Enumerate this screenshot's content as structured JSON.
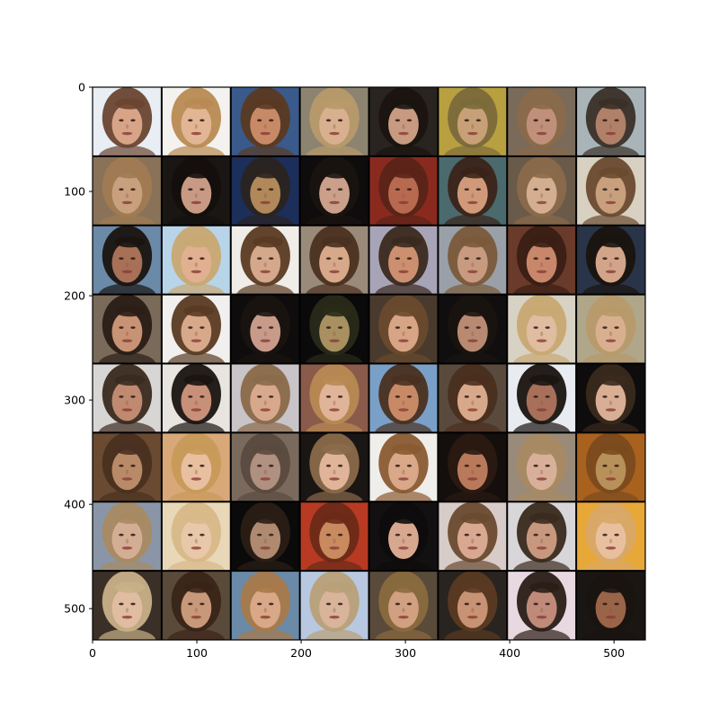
{
  "axes": {
    "x_range": [
      0,
      530
    ],
    "y_range": [
      0,
      530
    ],
    "y_inverted": true,
    "x_ticks": [
      {
        "value": 0,
        "label": "0"
      },
      {
        "value": 100,
        "label": "100"
      },
      {
        "value": 200,
        "label": "200"
      },
      {
        "value": 300,
        "label": "300"
      },
      {
        "value": 400,
        "label": "400"
      },
      {
        "value": 500,
        "label": "500"
      }
    ],
    "y_ticks": [
      {
        "value": 0,
        "label": "0"
      },
      {
        "value": 100,
        "label": "100"
      },
      {
        "value": 200,
        "label": "200"
      },
      {
        "value": 300,
        "label": "300"
      },
      {
        "value": 400,
        "label": "400"
      },
      {
        "value": 500,
        "label": "500"
      }
    ]
  },
  "image_grid": {
    "rows": 8,
    "cols": 8,
    "subject": "generated-face",
    "separator_color": "#000000",
    "tiles": [
      {
        "bg": "#e9eef4",
        "hair": "#6a4530",
        "skin": "#d8a488"
      },
      {
        "bg": "#f4f2ee",
        "hair": "#b88a52",
        "skin": "#e2b694"
      },
      {
        "bg": "#3a5a8c",
        "hair": "#5a3a22",
        "skin": "#c88a66"
      },
      {
        "bg": "#8c8470",
        "hair": "#b89a6a",
        "skin": "#d8b090"
      },
      {
        "bg": "#2a2420",
        "hair": "#1a1410",
        "skin": "#c89a80"
      },
      {
        "bg": "#b8a040",
        "hair": "#7a6a3a",
        "skin": "#c8a078"
      },
      {
        "bg": "#7a6a5a",
        "hair": "#8a6a4a",
        "skin": "#c0907a"
      },
      {
        "bg": "#a8b4b8",
        "hair": "#3a3028",
        "skin": "#b08068"
      },
      {
        "bg": "#8a7258",
        "hair": "#a07a52",
        "skin": "#c8a07e"
      },
      {
        "bg": "#1a1614",
        "hair": "#140f0c",
        "skin": "#c89a84"
      },
      {
        "bg": "#1c2e5a",
        "hair": "#2a2420",
        "skin": "#b0885a"
      },
      {
        "bg": "#0e0c0c",
        "hair": "#1a1410",
        "skin": "#caa08a"
      },
      {
        "bg": "#8a2a1e",
        "hair": "#5a2418",
        "skin": "#b86a50"
      },
      {
        "bg": "#4a6a6e",
        "hair": "#3a2418",
        "skin": "#d09a7a"
      },
      {
        "bg": "#6a5a4a",
        "hair": "#8a6a4a",
        "skin": "#d4ae90"
      },
      {
        "bg": "#d8d0c0",
        "hair": "#6a4a30",
        "skin": "#c8a07e"
      },
      {
        "bg": "#6a8aa8",
        "hair": "#1a1410",
        "skin": "#a87056"
      },
      {
        "bg": "#b8d4e8",
        "hair": "#c8a872",
        "skin": "#e0b090"
      },
      {
        "bg": "#f0ece8",
        "hair": "#5a3a22",
        "skin": "#d4a88a"
      },
      {
        "bg": "#9a8a7a",
        "hair": "#4a3020",
        "skin": "#d8a88a"
      },
      {
        "bg": "#a8a4b8",
        "hair": "#3a2a1e",
        "skin": "#cc9070"
      },
      {
        "bg": "#9aa0a8",
        "hair": "#7a5a3a",
        "skin": "#c89a80"
      },
      {
        "bg": "#6a3a2a",
        "hair": "#3a1e14",
        "skin": "#c8866a"
      },
      {
        "bg": "#2a3448",
        "hair": "#1a1410",
        "skin": "#d2a48a"
      },
      {
        "bg": "#7a6a5a",
        "hair": "#2a1e16",
        "skin": "#c89274"
      },
      {
        "bg": "#f2f0ee",
        "hair": "#5a3a22",
        "skin": "#d8a88a"
      },
      {
        "bg": "#0e0c0c",
        "hair": "#1a1410",
        "skin": "#c89a8a"
      },
      {
        "bg": "#0a0a0a",
        "hair": "#2a2a1a",
        "skin": "#a89060"
      },
      {
        "bg": "#4a3a2e",
        "hair": "#6a4a2e",
        "skin": "#d8a486"
      },
      {
        "bg": "#100e0e",
        "hair": "#1a1410",
        "skin": "#b88a72"
      },
      {
        "bg": "#d8d2c4",
        "hair": "#c8a872",
        "skin": "#e0bca0"
      },
      {
        "bg": "#b0a68a",
        "hair": "#b89a6a",
        "skin": "#d8b090"
      },
      {
        "bg": "#d8d6d4",
        "hair": "#3a2a20",
        "skin": "#c08a70"
      },
      {
        "bg": "#e8e4e0",
        "hair": "#1a1410",
        "skin": "#c89078"
      },
      {
        "bg": "#c8c4c8",
        "hair": "#8a6a4a",
        "skin": "#d8a88c"
      },
      {
        "bg": "#8a5a4a",
        "hair": "#b88a52",
        "skin": "#e0b498"
      },
      {
        "bg": "#7aa0c8",
        "hair": "#4a3020",
        "skin": "#c88a66"
      },
      {
        "bg": "#5a4a3e",
        "hair": "#4a2e1e",
        "skin": "#d8a88a"
      },
      {
        "bg": "#e8ecf0",
        "hair": "#1a1410",
        "skin": "#a8705a"
      },
      {
        "bg": "#0e0c0c",
        "hair": "#3a2a1e",
        "skin": "#d8ae94"
      },
      {
        "bg": "#6a4a30",
        "hair": "#4a3020",
        "skin": "#b88a68"
      },
      {
        "bg": "#d8a878",
        "hair": "#c89a5a",
        "skin": "#e8c0a0"
      },
      {
        "bg": "#7a6a5e",
        "hair": "#5a4a3e",
        "skin": "#b09080"
      },
      {
        "bg": "#1a1614",
        "hair": "#8a6a4a",
        "skin": "#e0b498"
      },
      {
        "bg": "#f0eeea",
        "hair": "#8a5a32",
        "skin": "#d8a888"
      },
      {
        "bg": "#140f0c",
        "hair": "#2a1a12",
        "skin": "#b87a5a"
      },
      {
        "bg": "#9a8a7a",
        "hair": "#a88a62",
        "skin": "#d8b09a"
      },
      {
        "bg": "#a8621e",
        "hair": "#7a4a1e",
        "skin": "#b8905a"
      },
      {
        "bg": "#8a96a8",
        "hair": "#a88a62",
        "skin": "#d4ae94"
      },
      {
        "bg": "#e8d8b8",
        "hair": "#d8b888",
        "skin": "#e8c8a8"
      },
      {
        "bg": "#0a0a0a",
        "hair": "#2a1e16",
        "skin": "#b08a70"
      },
      {
        "bg": "#b83a22",
        "hair": "#6a2a18",
        "skin": "#c88a5e"
      },
      {
        "bg": "#121010",
        "hair": "#0e0c0c",
        "skin": "#d8a88e"
      },
      {
        "bg": "#d8ccc8",
        "hair": "#6a4a30",
        "skin": "#d8a890"
      },
      {
        "bg": "#d8d6d8",
        "hair": "#3a2a1e",
        "skin": "#c8987e"
      },
      {
        "bg": "#e8a838",
        "hair": "#d8a868",
        "skin": "#e8c0a0"
      },
      {
        "bg": "#3a3028",
        "hair": "#c8b088",
        "skin": "#e0bca0"
      },
      {
        "bg": "#5a4a3a",
        "hair": "#3a2418",
        "skin": "#c8987a"
      },
      {
        "bg": "#6a8aa8",
        "hair": "#a87a4a",
        "skin": "#d8a888"
      },
      {
        "bg": "#b8c8e0",
        "hair": "#b8a078",
        "skin": "#d8b49a"
      },
      {
        "bg": "#5a4a3a",
        "hair": "#8a6a3e",
        "skin": "#d0a080"
      },
      {
        "bg": "#2a2420",
        "hair": "#5a3a22",
        "skin": "#c89274"
      },
      {
        "bg": "#e8d8e0",
        "hair": "#2a1e16",
        "skin": "#c08a7a"
      },
      {
        "bg": "#1a1614",
        "hair": "#1a1410",
        "skin": "#9a6448"
      }
    ]
  }
}
